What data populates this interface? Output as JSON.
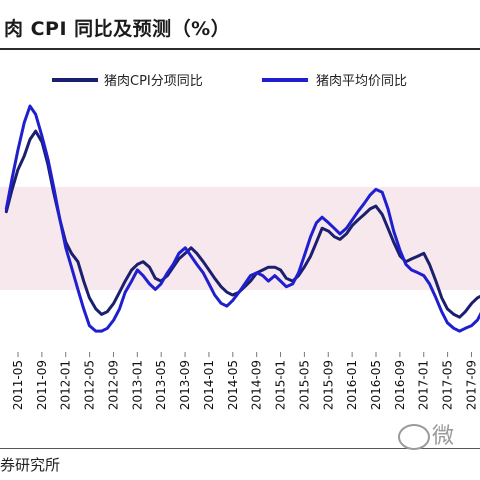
{
  "header": {
    "title": "肉 CPI 同比及预测（%）"
  },
  "footer": {
    "source": "券研究所",
    "watermark_text": "微"
  },
  "colors": {
    "cpi": "#1a1f6e",
    "price": "#1f1fd0"
  },
  "chart_data": {
    "type": "line",
    "title": "肉 CPI 同比及预测（%）",
    "xlabel": "",
    "ylabel": "",
    "grid": false,
    "legend": "top",
    "tick_labels": [
      "2011-05",
      "2011-09",
      "2012-01",
      "2012-05",
      "2012-09",
      "2013-01",
      "2013-05",
      "2013-09",
      "2014-01",
      "2014-05",
      "2014-09",
      "2015-01",
      "2015-05",
      "2015-09",
      "2016-01",
      "2016-05",
      "2016-09",
      "2017-01",
      "2017-05",
      "2017-09"
    ],
    "ylim": [
      -25,
      65
    ],
    "series": [
      {
        "name": "猪肉CPI分项同比",
        "color": "#1a1f6e",
        "values": [
          [
            2011.17,
            23
          ],
          [
            2011.25,
            31
          ],
          [
            2011.33,
            38
          ],
          [
            2011.42,
            43
          ],
          [
            2011.5,
            49
          ],
          [
            2011.58,
            52
          ],
          [
            2011.67,
            48
          ],
          [
            2011.75,
            40
          ],
          [
            2011.83,
            30
          ],
          [
            2011.92,
            20
          ],
          [
            2012.0,
            12
          ],
          [
            2012.08,
            8
          ],
          [
            2012.17,
            5
          ],
          [
            2012.25,
            -2
          ],
          [
            2012.33,
            -8
          ],
          [
            2012.42,
            -12
          ],
          [
            2012.5,
            -14
          ],
          [
            2012.58,
            -13
          ],
          [
            2012.67,
            -10
          ],
          [
            2012.75,
            -6
          ],
          [
            2012.83,
            -2
          ],
          [
            2012.92,
            2
          ],
          [
            2013.0,
            4
          ],
          [
            2013.08,
            5
          ],
          [
            2013.17,
            3
          ],
          [
            2013.25,
            -1
          ],
          [
            2013.33,
            -2
          ],
          [
            2013.42,
            0
          ],
          [
            2013.5,
            3
          ],
          [
            2013.58,
            6
          ],
          [
            2013.67,
            8
          ],
          [
            2013.75,
            10
          ],
          [
            2013.83,
            8
          ],
          [
            2013.92,
            5
          ],
          [
            2014.0,
            2
          ],
          [
            2014.08,
            -1
          ],
          [
            2014.17,
            -4
          ],
          [
            2014.25,
            -6
          ],
          [
            2014.33,
            -7
          ],
          [
            2014.42,
            -6
          ],
          [
            2014.5,
            -4
          ],
          [
            2014.58,
            -2
          ],
          [
            2014.67,
            1
          ],
          [
            2014.75,
            2
          ],
          [
            2014.83,
            3
          ],
          [
            2014.92,
            3
          ],
          [
            2015.0,
            2
          ],
          [
            2015.08,
            -1
          ],
          [
            2015.17,
            -2
          ],
          [
            2015.25,
            0
          ],
          [
            2015.33,
            3
          ],
          [
            2015.42,
            7
          ],
          [
            2015.5,
            12
          ],
          [
            2015.58,
            17
          ],
          [
            2015.67,
            16
          ],
          [
            2015.75,
            14
          ],
          [
            2015.83,
            13
          ],
          [
            2015.92,
            15
          ],
          [
            2016.0,
            18
          ],
          [
            2016.08,
            20
          ],
          [
            2016.17,
            22
          ],
          [
            2016.25,
            24
          ],
          [
            2016.33,
            25
          ],
          [
            2016.42,
            22
          ],
          [
            2016.5,
            17
          ],
          [
            2016.58,
            12
          ],
          [
            2016.67,
            7
          ],
          [
            2016.75,
            5
          ],
          [
            2016.83,
            6
          ],
          [
            2016.92,
            7
          ],
          [
            2017.0,
            8
          ],
          [
            2017.08,
            4
          ],
          [
            2017.17,
            -2
          ],
          [
            2017.25,
            -8
          ],
          [
            2017.33,
            -12
          ],
          [
            2017.42,
            -14
          ],
          [
            2017.5,
            -15
          ],
          [
            2017.58,
            -13
          ],
          [
            2017.67,
            -10
          ],
          [
            2017.75,
            -8
          ],
          [
            2017.83,
            -7
          ]
        ]
      },
      {
        "name": "猪肉平均价同比",
        "color": "#1f1fd0",
        "values": [
          [
            2011.17,
            24
          ],
          [
            2011.25,
            35
          ],
          [
            2011.33,
            45
          ],
          [
            2011.42,
            55
          ],
          [
            2011.5,
            61
          ],
          [
            2011.58,
            58
          ],
          [
            2011.67,
            50
          ],
          [
            2011.75,
            42
          ],
          [
            2011.83,
            32
          ],
          [
            2011.92,
            20
          ],
          [
            2012.0,
            10
          ],
          [
            2012.08,
            3
          ],
          [
            2012.17,
            -5
          ],
          [
            2012.25,
            -12
          ],
          [
            2012.33,
            -18
          ],
          [
            2012.42,
            -20
          ],
          [
            2012.5,
            -20
          ],
          [
            2012.58,
            -19
          ],
          [
            2012.67,
            -16
          ],
          [
            2012.75,
            -12
          ],
          [
            2012.83,
            -6
          ],
          [
            2012.92,
            -2
          ],
          [
            2013.0,
            2
          ],
          [
            2013.08,
            0
          ],
          [
            2013.17,
            -3
          ],
          [
            2013.25,
            -5
          ],
          [
            2013.33,
            -3
          ],
          [
            2013.42,
            1
          ],
          [
            2013.5,
            4
          ],
          [
            2013.58,
            8
          ],
          [
            2013.67,
            10
          ],
          [
            2013.75,
            7
          ],
          [
            2013.83,
            4
          ],
          [
            2013.92,
            1
          ],
          [
            2014.0,
            -3
          ],
          [
            2014.08,
            -7
          ],
          [
            2014.17,
            -10
          ],
          [
            2014.25,
            -11
          ],
          [
            2014.33,
            -9
          ],
          [
            2014.42,
            -6
          ],
          [
            2014.5,
            -3
          ],
          [
            2014.58,
            0
          ],
          [
            2014.67,
            1
          ],
          [
            2014.75,
            0
          ],
          [
            2014.83,
            -2
          ],
          [
            2014.92,
            0
          ],
          [
            2015.0,
            -2
          ],
          [
            2015.08,
            -4
          ],
          [
            2015.17,
            -3
          ],
          [
            2015.25,
            1
          ],
          [
            2015.33,
            7
          ],
          [
            2015.42,
            14
          ],
          [
            2015.5,
            19
          ],
          [
            2015.58,
            21
          ],
          [
            2015.67,
            19
          ],
          [
            2015.75,
            17
          ],
          [
            2015.83,
            15
          ],
          [
            2015.92,
            17
          ],
          [
            2016.0,
            20
          ],
          [
            2016.08,
            23
          ],
          [
            2016.17,
            26
          ],
          [
            2016.25,
            29
          ],
          [
            2016.33,
            31
          ],
          [
            2016.42,
            30
          ],
          [
            2016.5,
            24
          ],
          [
            2016.58,
            16
          ],
          [
            2016.67,
            9
          ],
          [
            2016.75,
            4
          ],
          [
            2016.83,
            2
          ],
          [
            2016.92,
            1
          ],
          [
            2017.0,
            0
          ],
          [
            2017.08,
            -3
          ],
          [
            2017.17,
            -8
          ],
          [
            2017.25,
            -13
          ],
          [
            2017.33,
            -17
          ],
          [
            2017.42,
            -19
          ],
          [
            2017.5,
            -20
          ],
          [
            2017.58,
            -19
          ],
          [
            2017.67,
            -18
          ],
          [
            2017.75,
            -16
          ],
          [
            2017.83,
            -12
          ]
        ]
      }
    ]
  }
}
